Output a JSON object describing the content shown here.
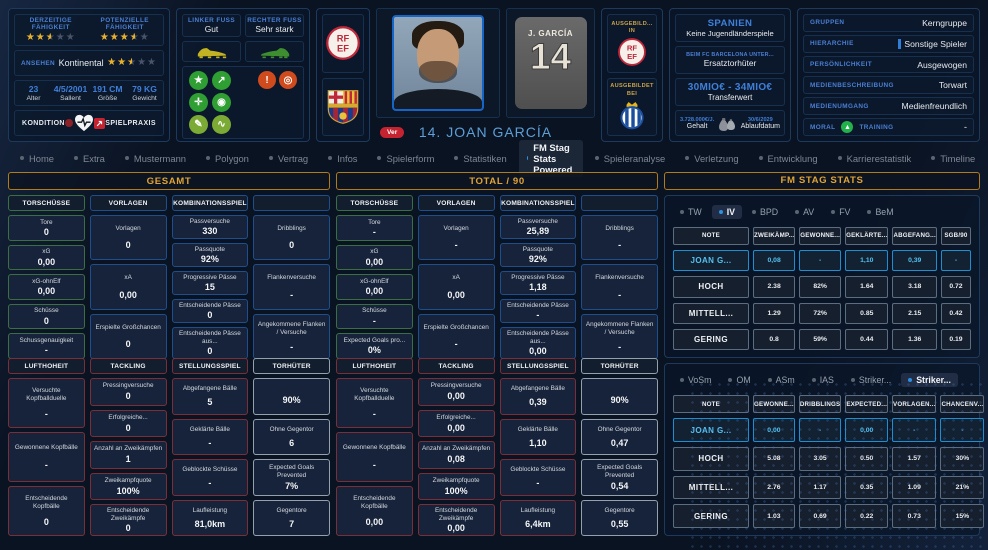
{
  "header": {
    "current_ability": {
      "label": "DERZEITIGE FÄHIGKEIT",
      "stars": 2.5
    },
    "potential_ability": {
      "label": "POTENZIELLE FÄHIGKEIT",
      "stars": 3.5
    },
    "reputation": {
      "label": "ANSEHEN",
      "value": "Kontinental",
      "stars": 2.5
    },
    "bio": [
      {
        "value": "23",
        "label": "Alter"
      },
      {
        "value": "4/5/2001",
        "label": "Sallent"
      },
      {
        "value": "191 CM",
        "label": "Größe"
      },
      {
        "value": "79 KG",
        "label": "Gewicht"
      }
    ],
    "condition_label": "KONDITION",
    "match_practice_label": "SPIELPRAXIS",
    "feet": {
      "left": {
        "label": "LINKER FUSS",
        "value": "Gut"
      },
      "right": {
        "label": "RECHTER FUSS",
        "value": "Sehr stark"
      }
    },
    "trait_icons": [
      {
        "name": "star-icon",
        "glyph": "★",
        "alt": false
      },
      {
        "name": "improvement-icon",
        "glyph": "↗",
        "alt": false
      },
      {
        "name": "controller-icon",
        "glyph": "✛",
        "alt": false
      },
      {
        "name": "position-icon",
        "glyph": "◉",
        "alt": false
      },
      {
        "name": "report-icon",
        "glyph": "✎",
        "alt": true
      },
      {
        "name": "form-icon",
        "glyph": "∿",
        "alt": true
      }
    ],
    "alert_icons": [
      {
        "name": "ball-alert-icon",
        "glyph": "!"
      },
      {
        "name": "target-icon",
        "glyph": "◎"
      }
    ],
    "shirt_name": "J. GARCÍA",
    "player_number": "14",
    "player_title": "14. JOAN GARCÍA",
    "ver_badge": "Ver",
    "trained_in_label": "AUSGEBILD... IN",
    "trained_at_label": "AUSGEBILDET BEI",
    "nation": {
      "name": "SPANIEN",
      "youth_caps": "Keine Jugendländerspiele",
      "club_role_label": "BEIM FC BARCELONA UNTER...",
      "club_role": "Ersatztorhüter",
      "transfer_value": "30MIO€ - 34MIO€",
      "transfer_value_label": "Transferwert",
      "wage": "3.728.000€/J.",
      "wage_label": "Gehalt",
      "contract_end": "30/6/2029",
      "contract_end_label": "Ablaufdatum"
    },
    "attributes": [
      {
        "label": "GRUPPEN",
        "value": "Kerngruppe",
        "bar": false
      },
      {
        "label": "HIERARCHIE",
        "value": "Sonstige Spieler",
        "bar": true
      },
      {
        "label": "PERSÖNLICHKEIT",
        "value": "Ausgewogen",
        "bar": false
      },
      {
        "label": "MEDIENBESCHREIBUNG",
        "value": "Torwart",
        "bar": false
      },
      {
        "label": "MEDIENUMGANG",
        "value": "Medienfreundlich",
        "bar": false
      }
    ],
    "moral": {
      "label": "MORAL",
      "training_label": "TRAINING",
      "training_value": "-"
    }
  },
  "nav": {
    "tabs": [
      {
        "label": "Home",
        "active": false
      },
      {
        "label": "Extra",
        "active": false
      },
      {
        "label": "Mustermann",
        "active": false
      },
      {
        "label": "Polygon",
        "active": false
      },
      {
        "label": "Vertrag",
        "active": false
      },
      {
        "label": "Infos",
        "active": false
      },
      {
        "label": "Spielerform",
        "active": false
      },
      {
        "label": "Statistiken",
        "active": false
      },
      {
        "label": "FM Stag Stats Powered",
        "active": true
      },
      {
        "label": "Spieleranalyse",
        "active": false
      },
      {
        "label": "Verletzung",
        "active": false
      },
      {
        "label": "Entwicklung",
        "active": false
      },
      {
        "label": "Karrierestatistik",
        "active": false
      },
      {
        "label": "Timeline",
        "active": false
      }
    ]
  },
  "stat_columns": [
    {
      "title": "GESAMT",
      "sections": [
        {
          "columns": [
            {
              "theme": "green",
              "header": "TORSCHÜSSE",
              "boxes": [
                [
                  "Tore",
                  "0"
                ],
                [
                  "xG",
                  "0,00"
                ],
                [
                  "xG-ohnElf",
                  "0,00"
                ],
                [
                  "Schüsse",
                  "0"
                ],
                [
                  "Schussgenauigkeit",
                  "-"
                ]
              ]
            },
            {
              "theme": "blue",
              "header": "VORLAGEN",
              "boxes": [
                [
                  "Vorlagen",
                  "0"
                ],
                [
                  "xA",
                  "0,00"
                ],
                [
                  "Erspielte Großchancen",
                  "0"
                ]
              ]
            },
            {
              "theme": "blue",
              "header": "KOMBINATIONSSPIEL",
              "boxes": [
                [
                  "Passversuche",
                  "330"
                ],
                [
                  "Passquote",
                  "92%"
                ],
                [
                  "Progressive Pässe",
                  "15"
                ],
                [
                  "Entscheidende Pässe",
                  "0"
                ],
                [
                  "Entscheidende Pässe aus...",
                  "0"
                ]
              ]
            },
            {
              "theme": "blue",
              "header": "",
              "boxes": [
                [
                  "Dribblings",
                  "0"
                ],
                [
                  "Flankenversuche",
                  "-"
                ],
                [
                  "Angekommene Flanken / Versuche",
                  "-"
                ]
              ]
            }
          ]
        },
        {
          "columns": [
            {
              "theme": "red",
              "header": "LUFTHOHEIT",
              "boxes": [
                [
                  "Versuchte Kopfballduelle",
                  "-"
                ],
                [
                  "Gewonnene Kopfbälle",
                  "-"
                ],
                [
                  "Entscheidende Kopfbälle",
                  "0"
                ]
              ]
            },
            {
              "theme": "red",
              "header": "TACKLING",
              "boxes": [
                [
                  "Pressingversuche",
                  "0"
                ],
                [
                  "Erfolgreiche...",
                  "0"
                ],
                [
                  "Anzahl an Zweikämpfen",
                  "1"
                ],
                [
                  "Zweikampfquote",
                  "100%"
                ],
                [
                  "Entscheidende Zweikämpfe",
                  "0"
                ]
              ]
            },
            {
              "theme": "red",
              "header": "STELLUNGSSPIEL",
              "boxes": [
                [
                  "Abgefangene Bälle",
                  "5"
                ],
                [
                  "Geklärte Bälle",
                  "-"
                ],
                [
                  "Geblockte Schüsse",
                  "-"
                ],
                [
                  "Laufleistung",
                  "81,0km"
                ]
              ]
            },
            {
              "theme": "gray",
              "header": "TORHÜTER",
              "boxes": [
                [
                  "",
                  "90%"
                ],
                [
                  "Ohne Gegentor",
                  "6"
                ],
                [
                  "Expected Goals Prevented",
                  "7%"
                ],
                [
                  "Gegentore",
                  "7"
                ]
              ]
            }
          ]
        }
      ]
    },
    {
      "title": "TOTAL / 90",
      "sections": [
        {
          "columns": [
            {
              "theme": "green",
              "header": "TORSCHÜSSE",
              "boxes": [
                [
                  "Tore",
                  "-"
                ],
                [
                  "xG",
                  "0,00"
                ],
                [
                  "xG-ohnElf",
                  "0,00"
                ],
                [
                  "Schüsse",
                  "-"
                ],
                [
                  "Expected Goals pro...",
                  "0%"
                ]
              ]
            },
            {
              "theme": "blue",
              "header": "VORLAGEN",
              "boxes": [
                [
                  "Vorlagen",
                  "-"
                ],
                [
                  "xA",
                  "0,00"
                ],
                [
                  "Erspielte Großchancen",
                  "-"
                ]
              ]
            },
            {
              "theme": "blue",
              "header": "KOMBINATIONSSPIEL",
              "boxes": [
                [
                  "Passversuche",
                  "25,89"
                ],
                [
                  "Passquote",
                  "92%"
                ],
                [
                  "Progressive Pässe",
                  "1,18"
                ],
                [
                  "Entscheidende Pässe",
                  "-"
                ],
                [
                  "Entscheidende Pässe aus...",
                  "0,00"
                ]
              ]
            },
            {
              "theme": "blue",
              "header": "",
              "boxes": [
                [
                  "Dribblings",
                  "-"
                ],
                [
                  "Flankenversuche",
                  "-"
                ],
                [
                  "Angekommene Flanken / Versuche",
                  "-"
                ]
              ]
            }
          ]
        },
        {
          "columns": [
            {
              "theme": "red",
              "header": "LUFTHOHEIT",
              "boxes": [
                [
                  "Versuchte Kopfballduelle",
                  "-"
                ],
                [
                  "Gewonnene Kopfbälle",
                  "-"
                ],
                [
                  "Entscheidende Kopfbälle",
                  "0,00"
                ]
              ]
            },
            {
              "theme": "red",
              "header": "TACKLING",
              "boxes": [
                [
                  "Pressingversuche",
                  "0,00"
                ],
                [
                  "Erfolgreiche...",
                  "0,00"
                ],
                [
                  "Anzahl an Zweikämpfen",
                  "0,08"
                ],
                [
                  "Zweikampfquote",
                  "100%"
                ],
                [
                  "Entscheidende Zweikämpfe",
                  "0,00"
                ]
              ]
            },
            {
              "theme": "red",
              "header": "STELLUNGSSPIEL",
              "boxes": [
                [
                  "Abgefangene Bälle",
                  "0,39"
                ],
                [
                  "Geklärte Bälle",
                  "1,10"
                ],
                [
                  "Geblockte Schüsse",
                  "-"
                ],
                [
                  "Laufleistung",
                  "6,4km"
                ]
              ]
            },
            {
              "theme": "gray",
              "header": "TORHÜTER",
              "boxes": [
                [
                  "",
                  "90%"
                ],
                [
                  "Ohne Gegentor",
                  "0,47"
                ],
                [
                  "Expected Goals Prevented",
                  "0,54"
                ],
                [
                  "Gegentore",
                  "0,55"
                ]
              ]
            }
          ]
        }
      ]
    }
  ],
  "fm_stag": {
    "title": "FM STAG STATS",
    "tables": [
      {
        "tabs": [
          {
            "label": "TW",
            "active": false
          },
          {
            "label": "IV",
            "active": true
          },
          {
            "label": "BPD",
            "active": false
          },
          {
            "label": "AV",
            "active": false
          },
          {
            "label": "FV",
            "active": false
          },
          {
            "label": "BeM",
            "active": false
          }
        ],
        "headers": [
          "NOTE",
          "ZWEIKÄMP...",
          "GEWONNE...",
          "GEKLÄRTE...",
          "ABGEFANG...",
          "SGB/90"
        ],
        "rows": [
          {
            "name": "JOAN G...",
            "highlight": true,
            "values": [
              "0,08",
              "-",
              "1,10",
              "0,39",
              "-"
            ]
          },
          {
            "name": "HOCH",
            "highlight": false,
            "values": [
              "2.38",
              "82%",
              "1.64",
              "3.18",
              "0.72"
            ]
          },
          {
            "name": "MITTELL...",
            "highlight": false,
            "values": [
              "1.29",
              "72%",
              "0.85",
              "2.15",
              "0.42"
            ]
          },
          {
            "name": "GERING",
            "highlight": false,
            "values": [
              "0.8",
              "59%",
              "0.44",
              "1.36",
              "0.19"
            ]
          }
        ]
      },
      {
        "tabs": [
          {
            "label": "VoSm",
            "active": false
          },
          {
            "label": "OM",
            "active": false
          },
          {
            "label": "ASm",
            "active": false
          },
          {
            "label": "IAS",
            "active": false
          },
          {
            "label": "Striker...",
            "active": false
          },
          {
            "label": "Striker...",
            "active": true
          }
        ],
        "headers": [
          "NOTE",
          "GEWONNE...",
          "DRIBBLINGS",
          "EXPECTED...",
          "VORLAGEN...",
          "CHANCENV..."
        ],
        "rows": [
          {
            "name": "JOAN G...",
            "highlight": true,
            "values": [
              "0,00",
              "-",
              "0,00",
              "-",
              "-"
            ]
          },
          {
            "name": "HOCH",
            "highlight": false,
            "values": [
              "5.08",
              "3.05",
              "0.50",
              "1.57",
              "30%"
            ]
          },
          {
            "name": "MITTELL...",
            "highlight": false,
            "values": [
              "2.76",
              "1.17",
              "0.35",
              "1.09",
              "21%"
            ]
          },
          {
            "name": "GERING",
            "highlight": false,
            "values": [
              "1.03",
              "0.69",
              "0.22",
              "0.73",
              "15%"
            ]
          }
        ]
      }
    ]
  },
  "colors": {
    "background": "#0a1322",
    "panel_border": "#1c3a5e",
    "accent_blue": "#4a7fd4",
    "gold": "#e0a434",
    "cyan_highlight": "#53c1f0",
    "green_border": "#3c6e46",
    "blue_border": "#1f4e8c",
    "red_border": "#7a2f38",
    "gray_border": "#93a1ad",
    "badge_red": "#c62331",
    "moral_green": "#23b14b"
  }
}
